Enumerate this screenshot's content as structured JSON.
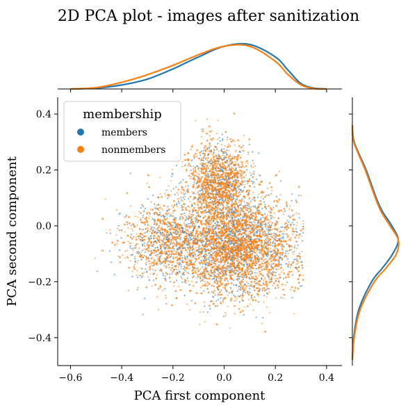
{
  "chart_data": {
    "type": "scatter",
    "title": "2D PCA plot - images after sanitization",
    "xlabel": "PCA first component",
    "ylabel": "PCA second component",
    "xlim": [
      -0.65,
      0.46
    ],
    "ylim": [
      -0.5,
      0.46
    ],
    "xticks": [
      -0.6,
      -0.4,
      -0.2,
      0.0,
      0.2,
      0.4
    ],
    "xtick_labels": [
      "−0.6",
      "−0.4",
      "−0.2",
      "0.0",
      "0.2",
      "0.4"
    ],
    "yticks": [
      -0.4,
      -0.2,
      0.0,
      0.2,
      0.4
    ],
    "ytick_labels": [
      "−0.4",
      "−0.2",
      "0.0",
      "0.2",
      "0.4"
    ],
    "grid": false,
    "legend": {
      "title": "membership",
      "placement": "upper-left"
    },
    "series": [
      {
        "name": "members",
        "color": "#1f77b4",
        "marginal_x": {
          "x": [
            -0.6,
            -0.5,
            -0.4,
            -0.3,
            -0.2,
            -0.1,
            0.0,
            0.1,
            0.2,
            0.25,
            0.3,
            0.35,
            0.4
          ],
          "density": [
            0.0,
            0.02,
            0.09,
            0.22,
            0.45,
            0.72,
            0.96,
            1.0,
            0.72,
            0.42,
            0.12,
            0.02,
            0.0
          ]
        },
        "marginal_y": {
          "y": [
            -0.48,
            -0.4,
            -0.3,
            -0.2,
            -0.15,
            -0.1,
            -0.05,
            0.0,
            0.05,
            0.1,
            0.2,
            0.3,
            0.36
          ],
          "density": [
            0.0,
            0.03,
            0.14,
            0.42,
            0.66,
            0.88,
            1.0,
            0.86,
            0.66,
            0.52,
            0.3,
            0.04,
            0.0
          ]
        }
      },
      {
        "name": "nonmembers",
        "color": "#ff7f0e",
        "marginal_x": {
          "x": [
            -0.6,
            -0.5,
            -0.4,
            -0.3,
            -0.2,
            -0.1,
            0.0,
            0.1,
            0.2,
            0.25,
            0.3,
            0.35,
            0.4
          ],
          "density": [
            0.0,
            0.03,
            0.15,
            0.32,
            0.53,
            0.77,
            0.96,
            0.96,
            0.62,
            0.32,
            0.09,
            0.01,
            0.0
          ]
        },
        "marginal_y": {
          "y": [
            -0.48,
            -0.4,
            -0.3,
            -0.2,
            -0.15,
            -0.1,
            -0.05,
            0.0,
            0.05,
            0.1,
            0.2,
            0.3,
            0.36
          ],
          "density": [
            0.0,
            0.04,
            0.17,
            0.48,
            0.74,
            0.96,
            1.0,
            0.82,
            0.63,
            0.5,
            0.28,
            0.03,
            0.0
          ]
        }
      }
    ],
    "scatter_cloud": {
      "note_members_points": "dense cloud centered near (0.0, -0.03)",
      "center": [
        0.0,
        -0.03
      ],
      "spread": [
        0.14,
        0.12
      ]
    }
  }
}
